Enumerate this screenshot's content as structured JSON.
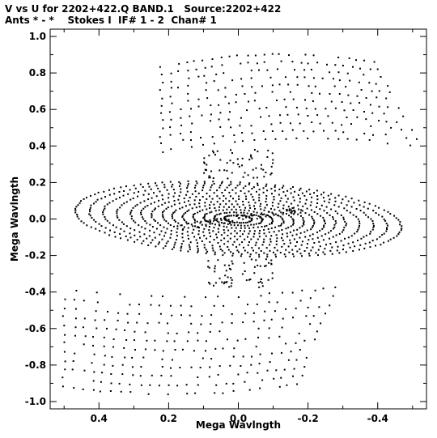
{
  "header": {
    "line1": "V vs U for 2202+422.Q BAND.1   Source:2202+422",
    "line2": "Ants * - *    Stokes I  IF# 1 - 2  Chan# 1"
  },
  "chart_data": {
    "type": "scatter",
    "title": "V vs U for 2202+422.Q BAND.1   Source:2202+422",
    "subtitle": "Ants * - *    Stokes I  IF# 1 - 2  Chan# 1",
    "xlabel": "Mega Wavlngth",
    "ylabel": "Mega Wavlngth",
    "xlim": [
      0.54,
      -0.54
    ],
    "ylim": [
      -1.04,
      1.04
    ],
    "x_reversed": true,
    "xticks": [
      0.4,
      0.2,
      0.0,
      -0.2,
      -0.4
    ],
    "xtick_labels": [
      "0.4",
      "0.2",
      "0.0",
      "-0.2",
      "-0.4"
    ],
    "yticks": [
      1.0,
      0.8,
      0.6,
      0.4,
      0.2,
      0.0,
      -0.2,
      -0.4,
      -0.6,
      -0.8,
      -1.0
    ],
    "ytick_labels": [
      "1.0",
      "0.8",
      "0.6",
      "0.4",
      "0.2",
      "0.0",
      "-0.2",
      "-0.4",
      "-0.6",
      "-0.8",
      "-1.0"
    ],
    "grid": false,
    "pattern": {
      "description": "uv-coverage: concentric elliptical tracks near origin plus high-|v| lobes",
      "inner_ellipses": [
        {
          "a": 0.04,
          "b": 0.02
        },
        {
          "a": 0.07,
          "b": 0.035
        },
        {
          "a": 0.1,
          "b": 0.05
        },
        {
          "a": 0.13,
          "b": 0.065
        },
        {
          "a": 0.16,
          "b": 0.08
        },
        {
          "a": 0.19,
          "b": 0.095
        },
        {
          "a": 0.22,
          "b": 0.11
        },
        {
          "a": 0.25,
          "b": 0.125
        },
        {
          "a": 0.28,
          "b": 0.14
        },
        {
          "a": 0.31,
          "b": 0.155
        },
        {
          "a": 0.35,
          "b": 0.17
        },
        {
          "a": 0.39,
          "b": 0.18
        },
        {
          "a": 0.43,
          "b": 0.19
        },
        {
          "a": 0.47,
          "b": 0.2
        }
      ],
      "upper_lobe": {
        "u_range": [
          0.22,
          -0.52
        ],
        "v_range": [
          0.36,
          0.86
        ]
      },
      "lower_lobe": {
        "u_range": [
          0.5,
          -0.28
        ],
        "v_range": [
          -0.96,
          -0.36
        ]
      }
    }
  }
}
